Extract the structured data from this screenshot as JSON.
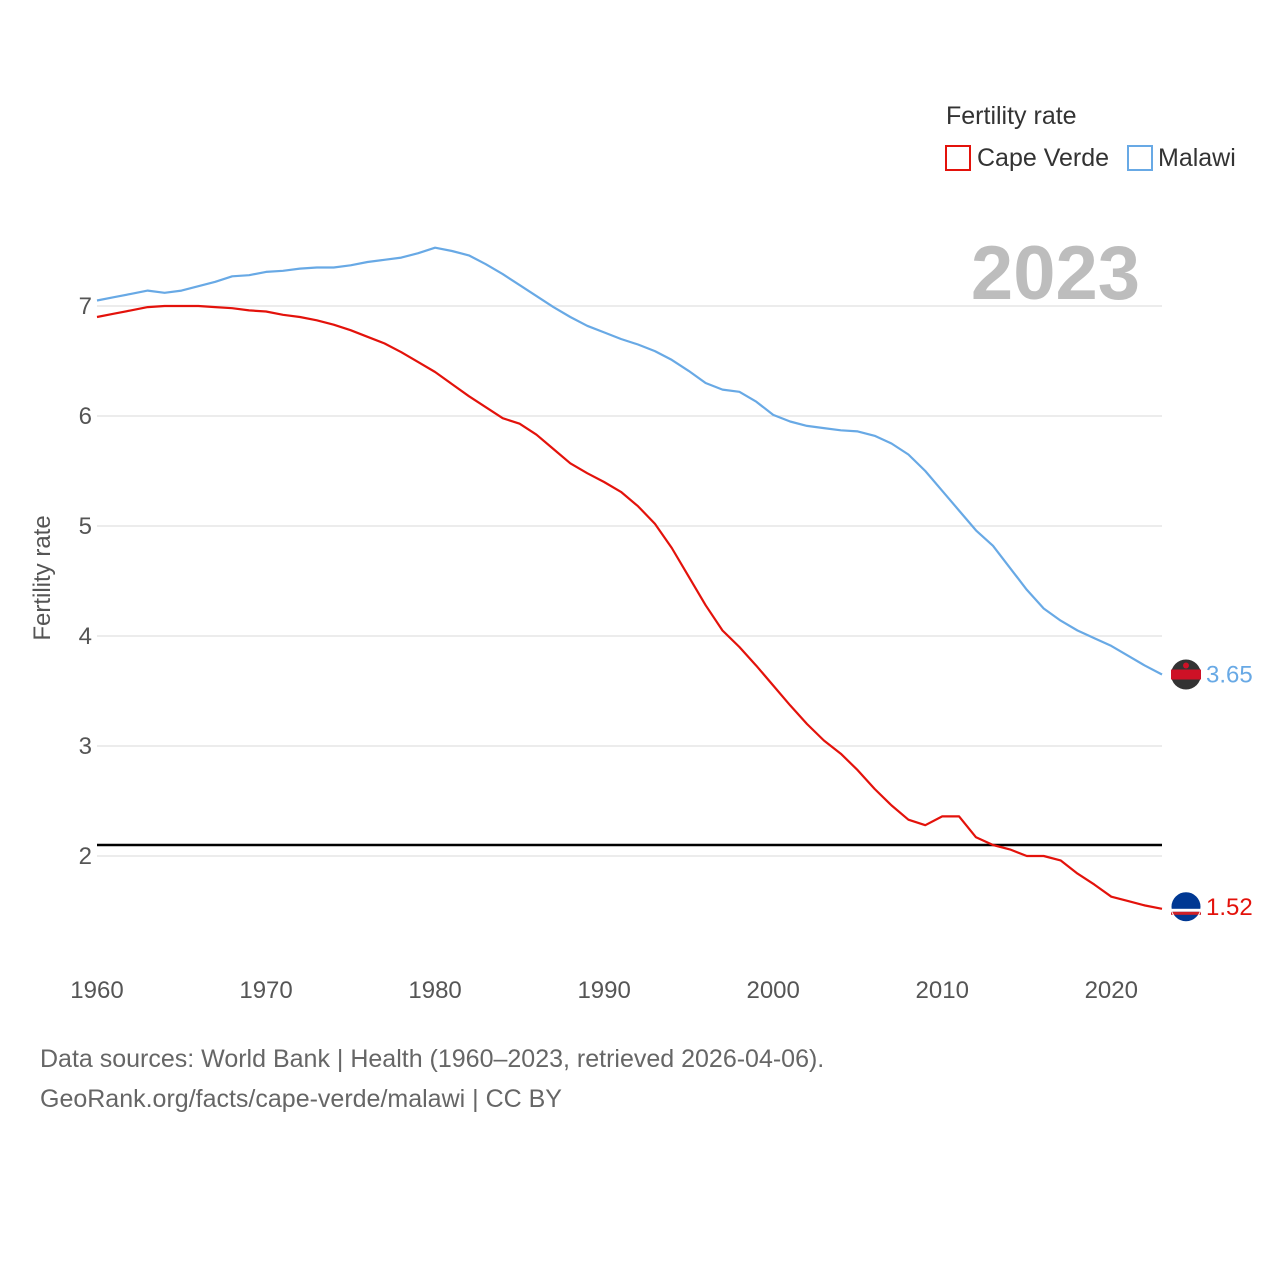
{
  "chart_data": {
    "type": "line",
    "title": "",
    "current_year": "2023",
    "xlabel": "",
    "ylabel": "Fertility rate",
    "xlim": [
      1960,
      2023
    ],
    "ylim": [
      1,
      7.8
    ],
    "x_ticks": [
      1960,
      1970,
      1980,
      1990,
      2000,
      2010,
      2020
    ],
    "x_tick_labels": [
      "1960",
      "1970",
      "1980",
      "1990",
      "2000",
      "2010",
      "2020"
    ],
    "y_ticks": [
      2,
      3,
      4,
      5,
      6,
      7
    ],
    "y_tick_labels": [
      "2",
      "3",
      "4",
      "5",
      "6",
      "7"
    ],
    "reference_line": 2.1,
    "legend": {
      "title": "Fertility rate",
      "position": "top-right"
    },
    "x": [
      1960,
      1961,
      1962,
      1963,
      1964,
      1965,
      1966,
      1967,
      1968,
      1969,
      1970,
      1971,
      1972,
      1973,
      1974,
      1975,
      1976,
      1977,
      1978,
      1979,
      1980,
      1981,
      1982,
      1983,
      1984,
      1985,
      1986,
      1987,
      1988,
      1989,
      1990,
      1991,
      1992,
      1993,
      1994,
      1995,
      1996,
      1997,
      1998,
      1999,
      2000,
      2001,
      2002,
      2003,
      2004,
      2005,
      2006,
      2007,
      2008,
      2009,
      2010,
      2011,
      2012,
      2013,
      2014,
      2015,
      2016,
      2017,
      2018,
      2019,
      2020,
      2021,
      2022,
      2023
    ],
    "series": [
      {
        "name": "Cape Verde",
        "color": "#e3120b",
        "end_label": "1.52",
        "values": [
          6.9,
          6.93,
          6.96,
          6.99,
          7.0,
          7.0,
          7.0,
          6.99,
          6.98,
          6.96,
          6.95,
          6.92,
          6.9,
          6.87,
          6.83,
          6.78,
          6.72,
          6.66,
          6.58,
          6.49,
          6.4,
          6.29,
          6.18,
          6.08,
          5.98,
          5.93,
          5.83,
          5.7,
          5.57,
          5.48,
          5.4,
          5.31,
          5.18,
          5.02,
          4.8,
          4.54,
          4.28,
          4.05,
          3.9,
          3.73,
          3.55,
          3.37,
          3.2,
          3.05,
          2.93,
          2.78,
          2.61,
          2.46,
          2.33,
          2.28,
          2.36,
          2.36,
          2.17,
          2.1,
          2.06,
          2.0,
          2.0,
          1.96,
          1.84,
          1.74,
          1.63,
          1.59,
          1.55,
          1.52
        ]
      },
      {
        "name": "Malawi",
        "color": "#68a9e5",
        "end_label": "3.65",
        "values": [
          7.05,
          7.08,
          7.11,
          7.14,
          7.12,
          7.14,
          7.18,
          7.22,
          7.27,
          7.28,
          7.31,
          7.32,
          7.34,
          7.35,
          7.35,
          7.37,
          7.4,
          7.42,
          7.44,
          7.48,
          7.53,
          7.5,
          7.46,
          7.38,
          7.29,
          7.19,
          7.09,
          6.99,
          6.9,
          6.82,
          6.76,
          6.7,
          6.65,
          6.59,
          6.51,
          6.41,
          6.3,
          6.24,
          6.22,
          6.13,
          6.01,
          5.95,
          5.91,
          5.89,
          5.87,
          5.86,
          5.82,
          5.75,
          5.65,
          5.5,
          5.32,
          5.14,
          4.96,
          4.82,
          4.62,
          4.42,
          4.25,
          4.14,
          4.05,
          3.98,
          3.91,
          3.82,
          3.73,
          3.65
        ]
      }
    ]
  },
  "footer": {
    "source_line": "Data sources: World Bank | Health (1960–2023, retrieved 2026-04-06).",
    "credit_line": "GeoRank.org/facts/cape-verde/malawi | CC BY"
  }
}
